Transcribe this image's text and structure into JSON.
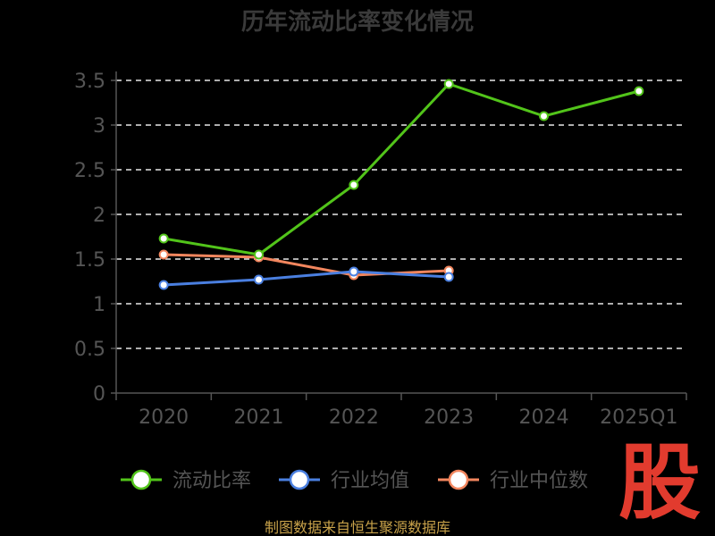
{
  "chart_data": {
    "type": "line",
    "title": "历年流动比率变化情况",
    "categories": [
      "2020",
      "2021",
      "2022",
      "2023",
      "2024",
      "2025Q1"
    ],
    "ylim": [
      0,
      3.5
    ],
    "yticks": [
      "0",
      "0.5",
      "1",
      "1.5",
      "2",
      "2.5",
      "3",
      "3.5"
    ],
    "grid": true,
    "legend_position": "bottom",
    "series": [
      {
        "name": "流动比率",
        "color": "#52c41a",
        "values": [
          1.73,
          1.55,
          2.33,
          3.46,
          3.1,
          3.38
        ]
      },
      {
        "name": "行业均值",
        "color": "#4a7fe0",
        "values": [
          1.21,
          1.27,
          1.36,
          1.3,
          null,
          null
        ]
      },
      {
        "name": "行业中位数",
        "color": "#f2865e",
        "values": [
          1.55,
          1.52,
          1.32,
          1.37,
          null,
          null
        ]
      }
    ]
  },
  "footer": {
    "source": "制图数据来自恒生聚源数据库"
  },
  "logo": {
    "text": "股",
    "color": "#e23b2e"
  }
}
